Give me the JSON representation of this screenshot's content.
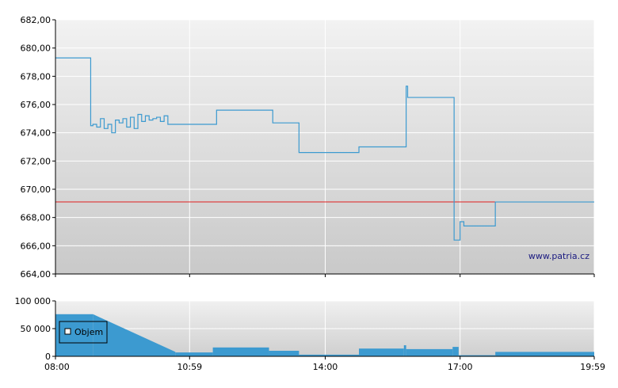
{
  "chart_data": [
    {
      "type": "line",
      "title": "",
      "xlabel": "",
      "ylabel": "",
      "ylim": [
        664,
        682
      ],
      "yticks": [
        "682,00",
        "680,00",
        "678,00",
        "676,00",
        "674,00",
        "672,00",
        "670,00",
        "668,00",
        "666,00",
        "664,00"
      ],
      "xticks": [
        "08:00",
        "10:59",
        "14:00",
        "17:00",
        "19:59"
      ],
      "grid": true,
      "watermark": "www.patria.cz",
      "reference_line": {
        "value": 669.1,
        "color": "#e02020"
      },
      "line_color": "#3c9ad0",
      "series": [
        {
          "x": [
            "08:00",
            "08:45",
            "08:47",
            "08:50",
            "08:55",
            "09:00",
            "09:05",
            "09:10",
            "09:15",
            "09:20",
            "09:25",
            "09:30",
            "09:35",
            "09:40",
            "09:45",
            "09:50",
            "09:55",
            "10:00",
            "10:05",
            "10:10",
            "10:15",
            "10:20",
            "10:25",
            "10:30",
            "10:35",
            "11:30",
            "11:35",
            "12:45",
            "12:50",
            "13:20",
            "13:25",
            "14:40",
            "14:45",
            "15:45",
            "15:48",
            "15:50",
            "16:50",
            "16:52",
            "16:58",
            "17:00",
            "17:05",
            "17:45",
            "17:47",
            "19:59"
          ],
          "y": [
            679.3,
            679.3,
            674.5,
            674.6,
            674.4,
            675.0,
            674.3,
            674.6,
            674.0,
            674.9,
            674.7,
            675.0,
            674.4,
            675.1,
            674.3,
            675.3,
            674.8,
            675.2,
            674.9,
            675.0,
            675.1,
            674.8,
            675.2,
            674.6,
            674.6,
            674.6,
            675.6,
            675.6,
            674.7,
            674.7,
            672.6,
            672.6,
            673.0,
            673.0,
            677.3,
            676.5,
            676.5,
            666.4,
            666.4,
            667.7,
            667.4,
            667.4,
            669.1,
            669.1
          ]
        }
      ]
    },
    {
      "type": "bar",
      "title": "",
      "xlabel": "",
      "ylabel": "",
      "ylim": [
        0,
        100000
      ],
      "yticks": [
        "100 000",
        "50 000",
        "0"
      ],
      "xticks": [
        "08:00",
        "10:59",
        "14:00",
        "17:00",
        "19:59"
      ],
      "grid": true,
      "legend": {
        "entries": [
          "Objem"
        ],
        "placement": "left"
      },
      "bar_color": "#3c9ad0",
      "steps": [
        {
          "from": "08:00",
          "to": "08:50",
          "value": 76000
        },
        {
          "from": "08:50",
          "to": "10:40",
          "value": 76000,
          "to_value": 8000
        },
        {
          "from": "10:40",
          "to": "11:30",
          "value": 7000
        },
        {
          "from": "11:30",
          "to": "12:45",
          "value": 16000
        },
        {
          "from": "12:45",
          "to": "13:25",
          "value": 10000
        },
        {
          "from": "13:25",
          "to": "14:45",
          "value": 3000
        },
        {
          "from": "14:45",
          "to": "15:45",
          "value": 14000
        },
        {
          "from": "15:45",
          "to": "15:48",
          "value": 20000
        },
        {
          "from": "15:48",
          "to": "16:50",
          "value": 13000
        },
        {
          "from": "16:50",
          "to": "16:58",
          "value": 17000
        },
        {
          "from": "16:58",
          "to": "17:47",
          "value": 2000
        },
        {
          "from": "17:47",
          "to": "19:59",
          "value": 8000
        }
      ]
    }
  ]
}
